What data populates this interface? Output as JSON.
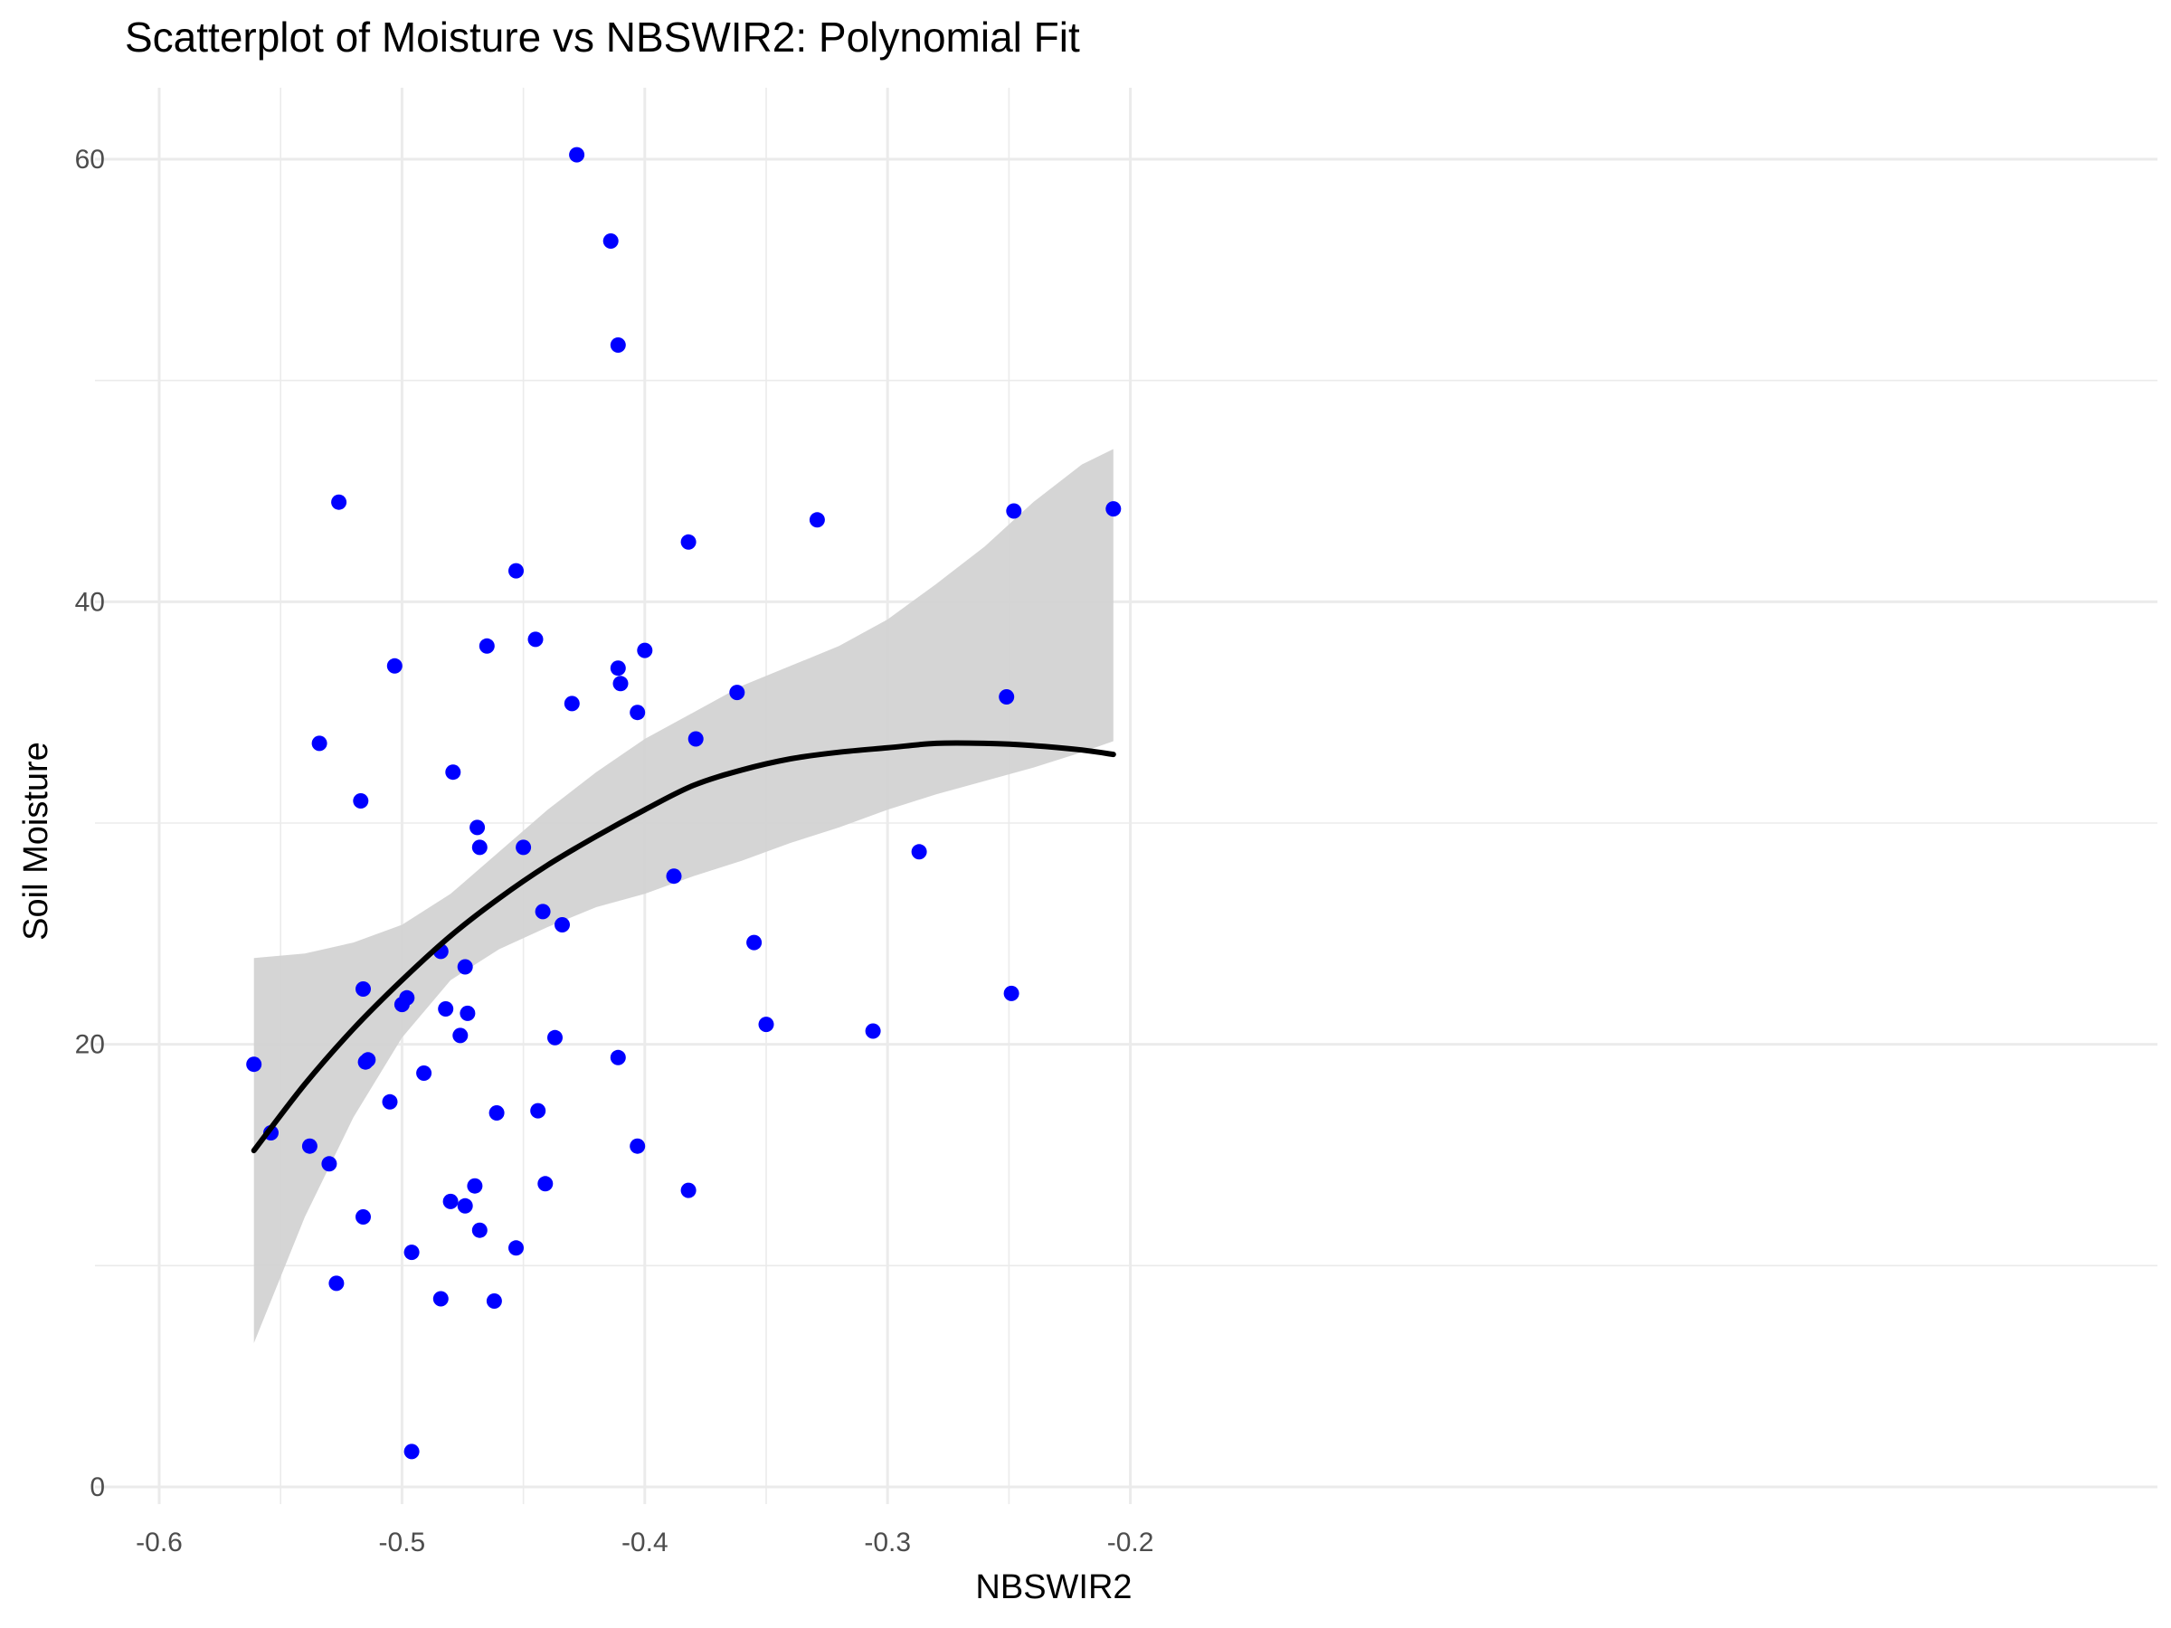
{
  "chart_data": {
    "type": "scatter",
    "title": "Scatterplot of Moisture vs NBSWIR2: Polynomial Fit",
    "xlabel": "NBSWIR2",
    "ylabel": "Soil Moisture",
    "xlim": [
      -0.6,
      -0.2
    ],
    "ylim": [
      0,
      60
    ],
    "x_ticks": [
      -0.6,
      -0.5,
      -0.4,
      -0.3,
      -0.2
    ],
    "x_tick_labels": [
      "-0.6",
      "-0.5",
      "-0.4",
      "-0.3",
      "-0.2"
    ],
    "y_ticks": [
      0,
      20,
      40,
      60
    ],
    "y_tick_labels": [
      "0",
      "20",
      "40",
      "60"
    ],
    "grid": true,
    "legend": "none",
    "colors": {
      "points": "#0000ff",
      "fit_line": "#000000",
      "confidence_band": "#d3d3d3",
      "grid": "#ebebeb"
    },
    "series": [
      {
        "type": "scatter",
        "x": [
          -0.561,
          -0.554,
          -0.538,
          -0.53,
          -0.534,
          -0.526,
          -0.527,
          -0.516,
          -0.515,
          -0.516,
          -0.517,
          -0.514,
          -0.505,
          -0.503,
          -0.5,
          -0.498,
          -0.496,
          -0.496,
          -0.491,
          -0.484,
          -0.484,
          -0.482,
          -0.479,
          -0.48,
          -0.476,
          -0.474,
          -0.474,
          -0.473,
          -0.47,
          -0.469,
          -0.468,
          -0.468,
          -0.465,
          -0.462,
          -0.461,
          -0.453,
          -0.453,
          -0.45,
          -0.445,
          -0.444,
          -0.442,
          -0.441,
          -0.437,
          -0.434,
          -0.43,
          -0.428,
          -0.414,
          -0.411,
          -0.411,
          -0.411,
          -0.41,
          -0.403,
          -0.403,
          -0.4,
          -0.388,
          -0.382,
          -0.382,
          -0.379,
          -0.362,
          -0.355,
          -0.35,
          -0.329,
          -0.306,
          -0.287,
          -0.251,
          -0.249,
          -0.248,
          -0.207
        ],
        "y": [
          19.1,
          16.0,
          15.4,
          14.6,
          33.6,
          44.5,
          9.2,
          22.5,
          19.2,
          12.2,
          31.0,
          19.3,
          17.4,
          37.1,
          21.8,
          22.1,
          10.6,
          1.6,
          18.7,
          24.2,
          8.5,
          21.6,
          32.3,
          12.9,
          20.4,
          23.5,
          12.7,
          21.4,
          13.6,
          29.8,
          28.9,
          11.6,
          38.0,
          8.4,
          16.9,
          10.8,
          41.4,
          28.9,
          38.3,
          17.0,
          26.0,
          13.7,
          20.3,
          25.4,
          35.4,
          60.2,
          56.3,
          51.6,
          37.0,
          19.4,
          36.3,
          35.0,
          15.4,
          37.8,
          27.6,
          42.7,
          13.4,
          33.8,
          35.9,
          24.6,
          20.9,
          43.7,
          20.6,
          28.7,
          35.7,
          22.3,
          44.1,
          44.2
        ]
      },
      {
        "type": "line",
        "name": "polynomial fit",
        "x": [
          -0.561,
          -0.54,
          -0.52,
          -0.5,
          -0.48,
          -0.46,
          -0.44,
          -0.42,
          -0.4,
          -0.38,
          -0.36,
          -0.34,
          -0.32,
          -0.3,
          -0.28,
          -0.26,
          -0.24,
          -0.22,
          -0.207
        ],
        "y": [
          15.2,
          18.2,
          20.7,
          22.9,
          24.9,
          26.6,
          28.1,
          29.4,
          30.6,
          31.7,
          32.4,
          32.9,
          33.2,
          33.4,
          33.6,
          33.6,
          33.5,
          33.3,
          33.1
        ]
      },
      {
        "type": "area",
        "name": "confidence band",
        "x": [
          -0.561,
          -0.54,
          -0.52,
          -0.5,
          -0.48,
          -0.46,
          -0.44,
          -0.42,
          -0.4,
          -0.38,
          -0.36,
          -0.34,
          -0.32,
          -0.3,
          -0.28,
          -0.26,
          -0.24,
          -0.22,
          -0.207
        ],
        "upper": [
          23.9,
          24.1,
          24.6,
          25.4,
          26.8,
          28.7,
          30.6,
          32.3,
          33.8,
          35.0,
          36.2,
          37.1,
          38.0,
          39.2,
          40.8,
          42.5,
          44.5,
          46.2,
          46.9
        ],
        "lower": [
          6.5,
          12.2,
          16.7,
          20.3,
          22.9,
          24.3,
          25.3,
          26.2,
          26.8,
          27.6,
          28.3,
          29.1,
          29.8,
          30.6,
          31.3,
          31.9,
          32.5,
          33.2,
          33.7
        ]
      }
    ]
  }
}
